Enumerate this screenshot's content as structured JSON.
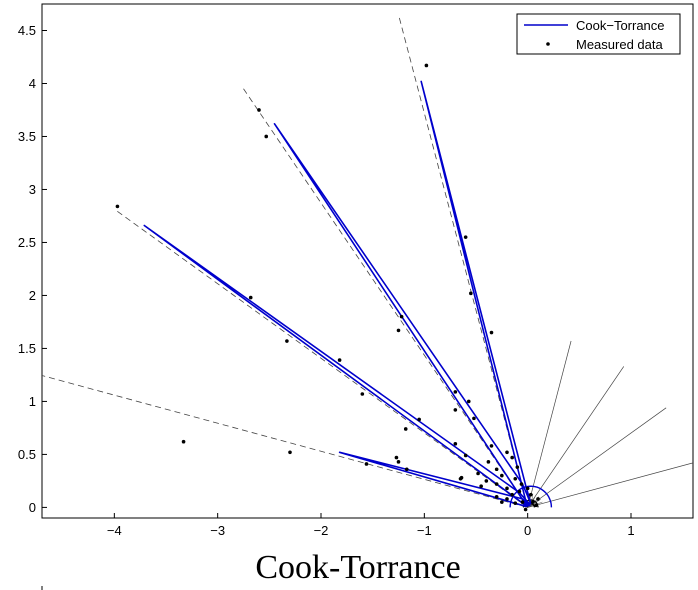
{
  "chart_data": {
    "type": "line",
    "title": "Cook-Torrance",
    "xlim": [
      -4.7,
      1.6
    ],
    "ylim": [
      -0.1,
      4.75
    ],
    "x_ticks": [
      {
        "value": -4,
        "label": "−4"
      },
      {
        "value": -3,
        "label": "−3"
      },
      {
        "value": -2,
        "label": "−2"
      },
      {
        "value": -1,
        "label": "−1"
      },
      {
        "value": 0,
        "label": "0"
      },
      {
        "value": 1,
        "label": "1"
      }
    ],
    "y_ticks": [
      {
        "value": 0,
        "label": "0"
      },
      {
        "value": 0.5,
        "label": "0.5"
      },
      {
        "value": 1,
        "label": "1"
      },
      {
        "value": 1.5,
        "label": "1.5"
      },
      {
        "value": 2,
        "label": "2"
      },
      {
        "value": 2.5,
        "label": "2.5"
      },
      {
        "value": 3,
        "label": "3"
      },
      {
        "value": 3.5,
        "label": "3.5"
      },
      {
        "value": 4,
        "label": "4"
      },
      {
        "value": 4.5,
        "label": "4.5"
      }
    ],
    "legend": {
      "position": "top-right",
      "entries": [
        {
          "label": "Cook−Torrance",
          "marker": "line",
          "color": "#0000cc"
        },
        {
          "label": "Measured data",
          "marker": "dot",
          "color": "#000000"
        }
      ]
    },
    "colors": {
      "model": "#0000cc",
      "measured": "#000000",
      "guide": "#444444"
    },
    "dashed_guides": [
      {
        "from": [
          0,
          0
        ],
        "to": [
          -4.72,
          1.25
        ]
      },
      {
        "from": [
          0,
          0
        ],
        "to": [
          -3.98,
          2.8
        ]
      },
      {
        "from": [
          0,
          0
        ],
        "to": [
          -2.75,
          3.95
        ]
      },
      {
        "from": [
          0,
          0
        ],
        "to": [
          -1.25,
          4.65
        ]
      }
    ],
    "solid_guides": [
      {
        "from": [
          0,
          0
        ],
        "to": [
          0.42,
          1.57
        ]
      },
      {
        "from": [
          0,
          0
        ],
        "to": [
          0.93,
          1.33
        ]
      },
      {
        "from": [
          0,
          0
        ],
        "to": [
          1.34,
          0.94
        ]
      },
      {
        "from": [
          0,
          0
        ],
        "to": [
          1.6,
          0.42
        ]
      }
    ],
    "series": [
      {
        "name": "Cook−Torrance",
        "lobes": [
          [
            [
              -0.02,
              0.01
            ],
            [
              -1.82,
              0.52
            ],
            [
              -0.05,
              0.08
            ],
            [
              0.02,
              0.02
            ]
          ],
          [
            [
              -0.02,
              0.02
            ],
            [
              -3.71,
              2.66
            ],
            [
              -0.08,
              0.14
            ],
            [
              0.02,
              0.03
            ]
          ],
          [
            [
              -0.02,
              0.03
            ],
            [
              -2.45,
              3.62
            ],
            [
              -0.05,
              0.22
            ],
            [
              0.03,
              0.04
            ]
          ],
          [
            [
              -0.01,
              0.03
            ],
            [
              -1.03,
              4.02
            ],
            [
              -0.02,
              0.21
            ],
            [
              0.03,
              0.04
            ]
          ]
        ]
      },
      {
        "name": "Measured data",
        "points": [
          [
            -0.98,
            4.17
          ],
          [
            -2.6,
            3.75
          ],
          [
            -2.53,
            3.5
          ],
          [
            -3.97,
            2.84
          ],
          [
            -0.6,
            2.55
          ],
          [
            -0.55,
            2.02
          ],
          [
            -0.35,
            1.65
          ],
          [
            -2.68,
            1.98
          ],
          [
            -1.22,
            1.8
          ],
          [
            -1.25,
            1.67
          ],
          [
            -2.33,
            1.57
          ],
          [
            -1.82,
            1.39
          ],
          [
            -1.6,
            1.07
          ],
          [
            -0.7,
            1.09
          ],
          [
            -0.57,
            1.0
          ],
          [
            -0.7,
            0.92
          ],
          [
            -0.52,
            0.84
          ],
          [
            -1.05,
            0.83
          ],
          [
            -1.18,
            0.74
          ],
          [
            -0.7,
            0.6
          ],
          [
            -0.35,
            0.58
          ],
          [
            -0.6,
            0.49
          ],
          [
            -0.2,
            0.52
          ],
          [
            -0.15,
            0.47
          ],
          [
            -1.27,
            0.47
          ],
          [
            -1.25,
            0.43
          ],
          [
            -1.56,
            0.41
          ],
          [
            -1.17,
            0.36
          ],
          [
            -0.38,
            0.43
          ],
          [
            -0.3,
            0.36
          ],
          [
            -0.48,
            0.32
          ],
          [
            -0.64,
            0.28
          ],
          [
            -0.65,
            0.27
          ],
          [
            -0.4,
            0.25
          ],
          [
            -3.33,
            0.62
          ],
          [
            -2.3,
            0.52
          ],
          [
            -0.45,
            0.2
          ],
          [
            -0.3,
            0.22
          ],
          [
            -0.25,
            0.3
          ],
          [
            -0.1,
            0.38
          ],
          [
            -0.12,
            0.27
          ],
          [
            -0.2,
            0.18
          ],
          [
            -0.08,
            0.15
          ],
          [
            -0.06,
            0.22
          ],
          [
            -0.15,
            0.12
          ],
          [
            -0.2,
            0.08
          ],
          [
            -0.3,
            0.1
          ],
          [
            -0.25,
            0.05
          ],
          [
            -0.12,
            0.04
          ],
          [
            -0.05,
            0.05
          ],
          [
            0.03,
            0.12
          ],
          [
            0.05,
            0.05
          ],
          [
            0.08,
            0.02
          ],
          [
            -0.02,
            -0.02
          ],
          [
            0.1,
            0.08
          ],
          [
            0.0,
            0.18
          ]
        ]
      }
    ],
    "title_position": "bottom"
  }
}
